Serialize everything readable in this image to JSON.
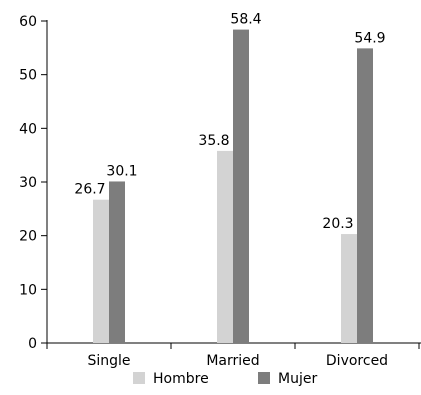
{
  "chart_data": {
    "type": "bar",
    "categories": [
      "Single",
      "Married",
      "Divorced"
    ],
    "series": [
      {
        "name": "Hombre",
        "values": [
          26.7,
          35.8,
          20.3
        ],
        "color": "#d3d3d3"
      },
      {
        "name": "Mujer",
        "values": [
          30.1,
          58.4,
          54.9
        ],
        "color": "#7d7d7d"
      }
    ],
    "data_labels": [
      [
        "26.7",
        "35.8",
        "20.3"
      ],
      [
        "30.1",
        "58.4",
        "54.9"
      ]
    ],
    "ylim": [
      0,
      60
    ],
    "yticks": [
      0,
      10,
      20,
      30,
      40,
      50,
      60
    ],
    "title": "",
    "xlabel": "",
    "ylabel": "",
    "grid": false,
    "legend_position": "bottom-center"
  }
}
